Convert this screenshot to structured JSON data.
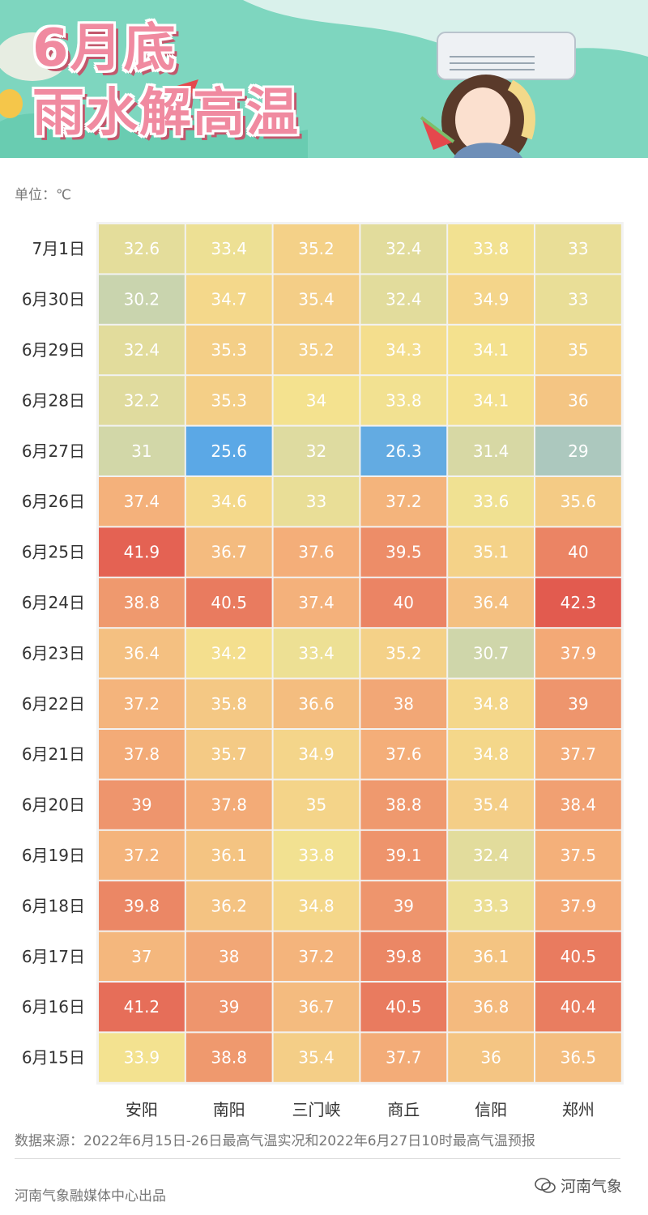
{
  "header": {
    "title_line1": "6月底",
    "title_line2": "雨水解高温"
  },
  "unit": "单位：℃",
  "source": "数据来源：2022年6月15日-26日最高气温实况和2022年6月27日10时最高气温预报",
  "footer": "河南气象融媒体中心出品",
  "watermark": "河南气象",
  "colors": {
    "cold": "#5ba8e6",
    "cool": "#c7d3b0",
    "mild": "#f4e28f",
    "warm": "#f4b07a",
    "hot": "#e25b4f",
    "banner": "#7ed6bf",
    "title": "#f08aa0"
  },
  "chart_data": {
    "type": "heatmap",
    "title": "6月底雨水解高温",
    "unit": "℃",
    "columns": [
      "安阳",
      "南阳",
      "三门峡",
      "商丘",
      "信阳",
      "郑州"
    ],
    "rows": [
      "7月1日",
      "6月30日",
      "6月29日",
      "6月28日",
      "6月27日",
      "6月26日",
      "6月25日",
      "6月24日",
      "6月23日",
      "6月22日",
      "6月21日",
      "6月20日",
      "6月19日",
      "6月18日",
      "6月17日",
      "6月16日",
      "6月15日"
    ],
    "values": [
      [
        32.6,
        33.4,
        35.2,
        32.4,
        33.8,
        33
      ],
      [
        30.2,
        34.7,
        35.4,
        32.4,
        34.9,
        33
      ],
      [
        32.4,
        35.3,
        35.2,
        34.3,
        34.1,
        35
      ],
      [
        32.2,
        35.3,
        34,
        33.8,
        34.1,
        36
      ],
      [
        31,
        25.6,
        32,
        26.3,
        31.4,
        29
      ],
      [
        37.4,
        34.6,
        33,
        37.2,
        33.6,
        35.6
      ],
      [
        41.9,
        36.7,
        37.6,
        39.5,
        35.1,
        40
      ],
      [
        38.8,
        40.5,
        37.4,
        40,
        36.4,
        42.3
      ],
      [
        36.4,
        34.2,
        33.4,
        35.2,
        30.7,
        37.9
      ],
      [
        37.2,
        35.8,
        36.6,
        38,
        34.8,
        39
      ],
      [
        37.8,
        35.7,
        34.9,
        37.6,
        34.8,
        37.7
      ],
      [
        39,
        37.8,
        35,
        38.8,
        35.4,
        38.4
      ],
      [
        37.2,
        36.1,
        33.8,
        39.1,
        32.4,
        37.5
      ],
      [
        39.8,
        36.2,
        34.8,
        39,
        33.3,
        37.9
      ],
      [
        37,
        38,
        37.2,
        39.8,
        36.1,
        40.5
      ],
      [
        41.2,
        39,
        36.7,
        40.5,
        36.8,
        40.4
      ],
      [
        33.9,
        38.8,
        35.4,
        37.7,
        36,
        36.5
      ]
    ]
  }
}
